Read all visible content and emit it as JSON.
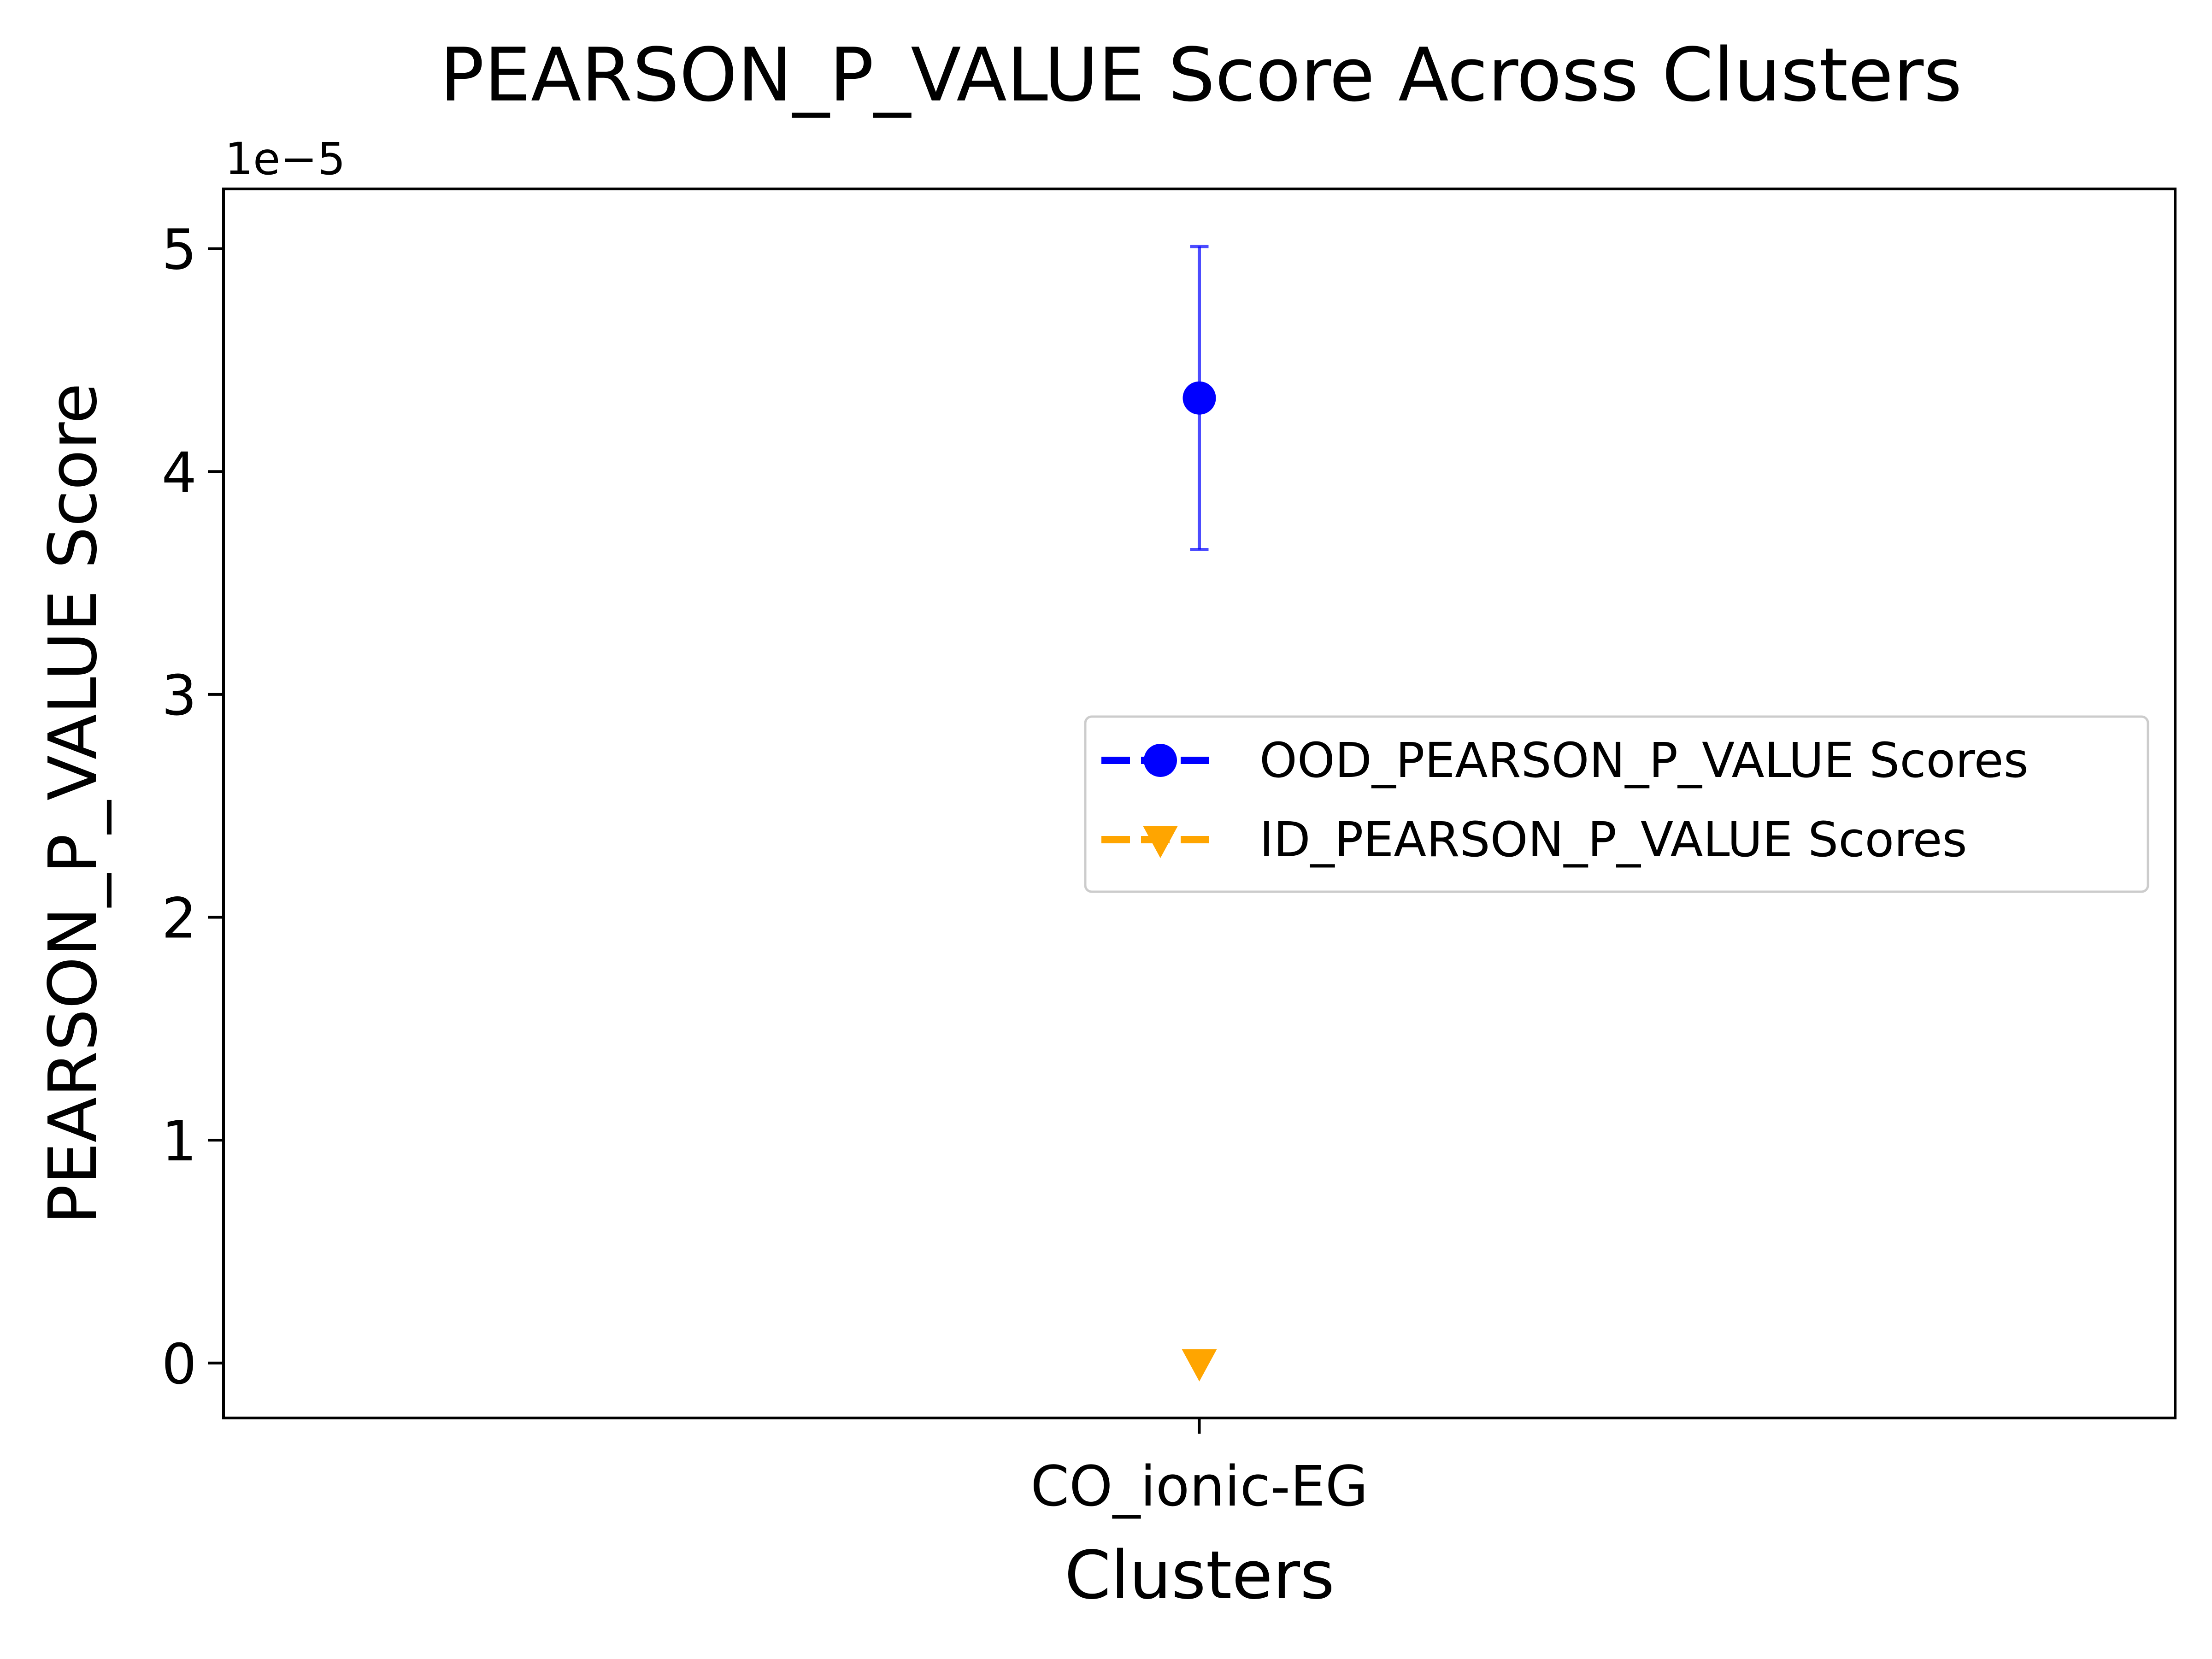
{
  "chart_data": {
    "type": "scatter",
    "title": "PEARSON_P_VALUE Score Across Clusters",
    "xlabel": "Clusters",
    "ylabel": "PEARSON_P_VALUE Score",
    "offset_text": "1e−5",
    "categories": [
      "CO_ionic-EG"
    ],
    "ylim": [
      -2.465e-06,
      5.2681e-05
    ],
    "yticks": [
      0,
      1e-05,
      2e-05,
      3e-05,
      4e-05,
      5e-05
    ],
    "ytick_labels": [
      "0",
      "1",
      "2",
      "3",
      "4",
      "5"
    ],
    "grid": false,
    "legend_position": "center-right",
    "series": [
      {
        "name": "OOD_PEARSON_P_VALUE Scores",
        "color": "#0000ff",
        "marker": "circle",
        "values": [
          4.33e-05
        ],
        "error": [
          6.8e-06
        ]
      },
      {
        "name": "ID_PEARSON_P_VALUE Scores",
        "color": "#ffa500",
        "marker": "triangle-down",
        "values": [
          0.0
        ],
        "error": [
          0
        ]
      }
    ]
  }
}
